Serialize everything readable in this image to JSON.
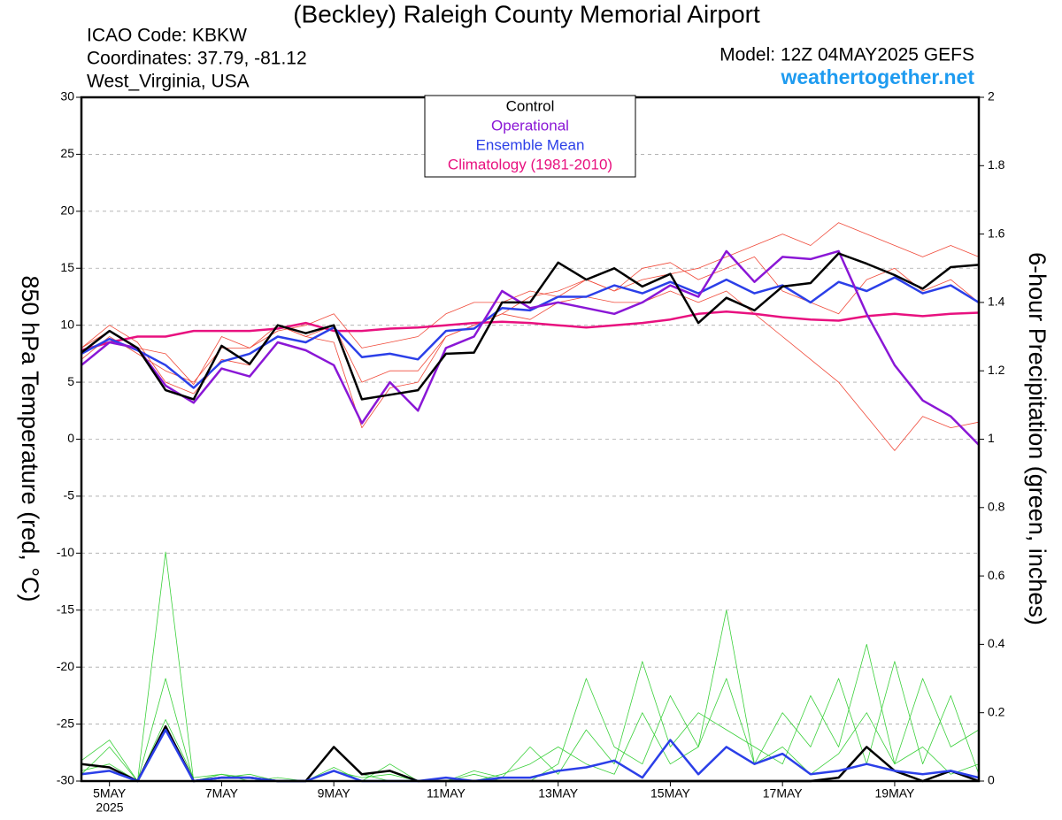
{
  "chart_data": {
    "type": "line",
    "title": "(Beckley) Raleigh County Memorial Airport",
    "icao": "ICAO Code: KBKW",
    "coordinates": "Coordinates: 37.79, -81.12",
    "location": "West_Virginia, USA",
    "model": "Model: 12Z 04MAY2025 GEFS",
    "website": "weathertogether.net",
    "ylabel": "850 hPa Temperature (red, °C)",
    "y2label": "6-hour Precipitation (green, inches)",
    "year_label": "2025",
    "x": [
      4.5,
      5,
      5.5,
      6,
      6.5,
      7,
      7.5,
      8,
      8.5,
      9,
      9.5,
      10,
      10.5,
      11,
      11.5,
      12,
      12.5,
      13,
      13.5,
      14,
      14.5,
      15,
      15.5,
      16,
      16.5,
      17,
      17.5,
      18,
      18.5,
      19,
      19.5,
      20,
      20.5
    ],
    "xlim": [
      4.5,
      20.5
    ],
    "xticks": [
      {
        "value": 5,
        "label": "5MAY"
      },
      {
        "value": 7,
        "label": "7MAY"
      },
      {
        "value": 9,
        "label": "9MAY"
      },
      {
        "value": 11,
        "label": "11MAY"
      },
      {
        "value": 13,
        "label": "13MAY"
      },
      {
        "value": 15,
        "label": "15MAY"
      },
      {
        "value": 17,
        "label": "17MAY"
      },
      {
        "value": 19,
        "label": "19MAY"
      }
    ],
    "ylim": [
      -30,
      30
    ],
    "yticks": [
      -30,
      -25,
      -20,
      -15,
      -10,
      -5,
      0,
      5,
      10,
      15,
      20,
      25,
      30
    ],
    "y2lim": [
      0,
      2
    ],
    "y2ticks": [
      0,
      0.2,
      0.4,
      0.6,
      0.8,
      1,
      1.2,
      1.4,
      1.6,
      1.8,
      2
    ],
    "grid": true,
    "legend": "top-center",
    "series": [
      {
        "color": "#f04a3a",
        "width": 0.8,
        "values": [
          8,
          10,
          8.5,
          5,
          4,
          7,
          6.5,
          10,
          9,
          8.5,
          1,
          4.5,
          5,
          9,
          10,
          11,
          12.5,
          13,
          14,
          13,
          14,
          14.5,
          15,
          16,
          17,
          18,
          17,
          19,
          18,
          17,
          16,
          17,
          16
        ]
      },
      {
        "color": "#f04a3a",
        "width": 0.8,
        "values": [
          7,
          9,
          7.5,
          6,
          5,
          8,
          8,
          10,
          9,
          10,
          5,
          6,
          6,
          9,
          10,
          11,
          10.5,
          12,
          12.5,
          12,
          12,
          13,
          12,
          13,
          11,
          9,
          7,
          5,
          2,
          -1,
          2,
          1,
          1.5
        ]
      },
      {
        "color": "#f04a3a",
        "width": 0.8,
        "values": [
          8,
          9.5,
          8,
          7.5,
          4.8,
          9,
          8,
          9.5,
          10,
          11,
          8,
          8.5,
          9,
          11,
          12,
          12,
          13,
          12.5,
          14,
          13,
          15,
          15.5,
          14,
          15,
          16,
          13,
          12,
          11,
          14,
          15,
          13,
          14,
          12
        ]
      },
      {
        "axis": "y2",
        "color": "#3ad03a",
        "width": 0.8,
        "values": [
          0.06,
          0.12,
          0,
          0.18,
          0.01,
          0.02,
          0.01,
          0,
          0,
          0.1,
          0.02,
          0,
          0,
          0.01,
          0,
          0.02,
          0.05,
          0.1,
          0.05,
          0.02,
          0.2,
          0.05,
          0.1,
          0.3,
          0.05,
          0.1,
          0.02,
          0.08,
          0.2,
          0.05,
          0.1,
          0.02,
          0.05
        ]
      },
      {
        "axis": "y2",
        "color": "#3ad03a",
        "width": 0.8,
        "values": [
          0.03,
          0.05,
          0,
          0.67,
          0,
          0.02,
          0,
          0.01,
          0,
          0.04,
          0,
          0.05,
          0,
          0,
          0.02,
          0,
          0,
          0.05,
          0.3,
          0.1,
          0.05,
          0.25,
          0.1,
          0.5,
          0.05,
          0.2,
          0.1,
          0.3,
          0.05,
          0.35,
          0.05,
          0.25,
          0.02
        ]
      },
      {
        "axis": "y2",
        "color": "#3ad03a",
        "width": 0.8,
        "values": [
          0.02,
          0.1,
          0,
          0.3,
          0,
          0.01,
          0.02,
          0,
          0,
          0.03,
          0.01,
          0.02,
          0,
          0,
          0.03,
          0.01,
          0.1,
          0.02,
          0.15,
          0.05,
          0.35,
          0.1,
          0.2,
          0.15,
          0.1,
          0.05,
          0.25,
          0.1,
          0.4,
          0.05,
          0.3,
          0.1,
          0.15
        ]
      },
      {
        "axis": "y2",
        "color": "#000000",
        "width": 2.5,
        "values": [
          0.05,
          0.04,
          0,
          0.16,
          0,
          0.01,
          0.01,
          0,
          0,
          0.1,
          0.02,
          0.03,
          0,
          0,
          0,
          0,
          0,
          0,
          0,
          0,
          0,
          0,
          0,
          0,
          0,
          0,
          0,
          0.01,
          0.1,
          0.03,
          0,
          0.03,
          0
        ]
      },
      {
        "axis": "y2",
        "color": "#2b3fe8",
        "width": 2.5,
        "values": [
          0.02,
          0.03,
          0,
          0.15,
          0,
          0.01,
          0.01,
          0,
          0,
          0.03,
          0,
          0,
          0,
          0.01,
          0,
          0.01,
          0.01,
          0.03,
          0.04,
          0.06,
          0.01,
          0.12,
          0.02,
          0.1,
          0.05,
          0.08,
          0.02,
          0.03,
          0.05,
          0.03,
          0.02,
          0.03,
          0.01
        ]
      },
      {
        "name": "Climatology (1981-2010)",
        "color": "#e8117f",
        "width": 2.5,
        "values": [
          7.8,
          8.5,
          9,
          9,
          9.5,
          9.5,
          9.5,
          9.7,
          10.2,
          9.5,
          9.5,
          9.7,
          9.8,
          10,
          10.2,
          10.3,
          10.2,
          10,
          9.8,
          10,
          10.2,
          10.5,
          11,
          11.2,
          11,
          10.7,
          10.5,
          10.4,
          10.8,
          11,
          10.8,
          11,
          11.1
        ]
      },
      {
        "name": "Ensemble Mean",
        "color": "#2b3fe8",
        "width": 2.5,
        "values": [
          7.5,
          8.8,
          7.8,
          6.5,
          4.5,
          6.8,
          7.5,
          9,
          8.5,
          9.8,
          7.2,
          7.5,
          7,
          9.5,
          9.7,
          11.5,
          11.3,
          12.5,
          12.5,
          13.5,
          12.8,
          13.8,
          12.8,
          14,
          12.8,
          13.5,
          12,
          13.8,
          13,
          14.2,
          12.8,
          13.5,
          12
        ]
      },
      {
        "name": "Operational",
        "color": "#8a17d6",
        "width": 2.5,
        "values": [
          6.5,
          8.5,
          8,
          4.7,
          3.2,
          6.2,
          5.5,
          8.5,
          7.8,
          6.5,
          1.4,
          5,
          2.5,
          8,
          9,
          13,
          11.5,
          12,
          11.5,
          11,
          12,
          13.5,
          12.5,
          16.5,
          13.8,
          16,
          15.8,
          16.5,
          11,
          6.5,
          3.4,
          2,
          -0.5
        ]
      },
      {
        "name": "Control",
        "color": "#000000",
        "width": 2.5,
        "values": [
          7.6,
          9.5,
          8,
          4.3,
          3.5,
          8.2,
          6.6,
          10,
          9.3,
          10,
          3.5,
          3.9,
          4.3,
          7.5,
          7.6,
          12,
          12,
          15.5,
          14,
          15,
          13.4,
          14.5,
          10.2,
          12.4,
          11.3,
          13.4,
          13.7,
          16.3,
          15.4,
          14.4,
          13.2,
          15.1,
          15.3
        ]
      }
    ]
  }
}
